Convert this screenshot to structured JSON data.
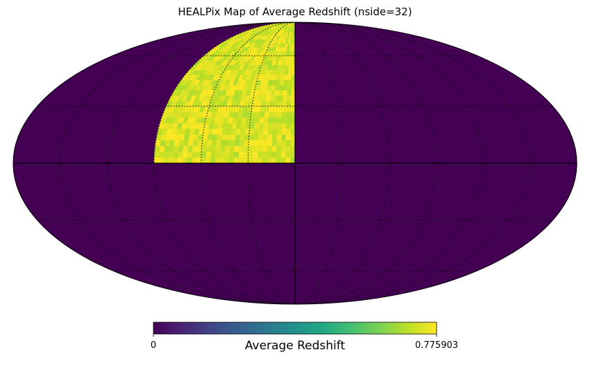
{
  "chart_data": {
    "type": "heatmap",
    "title": "HEALPix Map of Average Redshift (nside=32)",
    "projection": "mollweide",
    "grid": true,
    "colormap": "viridis",
    "colorbar": {
      "label": "Average Redshift",
      "min": 0,
      "max": 0.775903,
      "min_label": "0",
      "max_label": "0.775903",
      "placement": "bottom"
    },
    "filled_region": {
      "lon_range": [
        0,
        90
      ],
      "lat_range": [
        0,
        90
      ],
      "typical_value": 0.73
    },
    "background_value": 0
  },
  "colors": {
    "viridis_low": "#440154",
    "viridis_mid": "#21918c",
    "viridis_high": "#fde725"
  }
}
